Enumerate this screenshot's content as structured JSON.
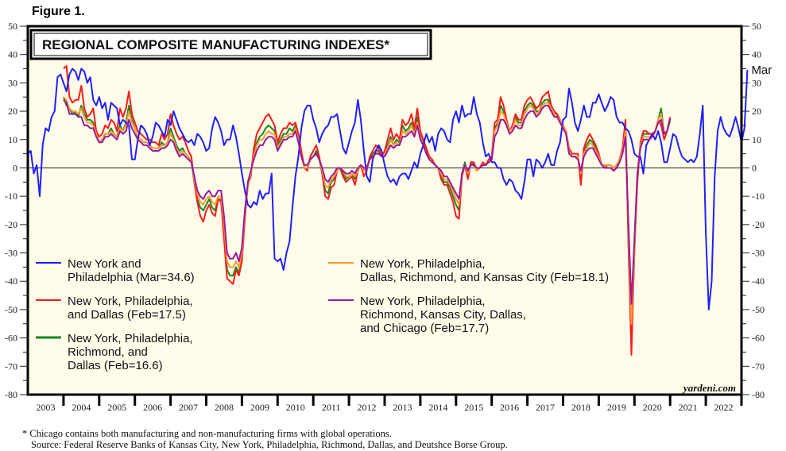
{
  "figure_label": "Figure 1.",
  "footnotes": {
    "note": "*  Chicago contains both manufacturing and non-manufacturing firms with global operations.",
    "source": "Source: Federal Reserve Banks of Kansas City, New York, Philadelphia, Richmond, Dallas, and Deutshce Borse Group."
  },
  "chart_data": {
    "type": "line",
    "title": "REGIONAL COMPOSITE MANUFACTURING INDEXES*",
    "brand": "yardeni.com",
    "xlabel": "",
    "ylabel": "",
    "ylim": [
      -80,
      50
    ],
    "yticks": [
      50,
      40,
      30,
      20,
      10,
      0,
      -10,
      -20,
      -30,
      -40,
      -50,
      -60,
      -70,
      -80
    ],
    "xlim": [
      2003.0,
      2023.0
    ],
    "xtick_labels": [
      "2003",
      "2004",
      "2005",
      "2006",
      "2007",
      "2008",
      "2009",
      "2010",
      "2011",
      "2012",
      "2013",
      "2014",
      "2015",
      "2016",
      "2017",
      "2018",
      "2019",
      "2020",
      "2021",
      "2022"
    ],
    "grid": false,
    "zero_line": true,
    "end_annotation": {
      "text": "Mar",
      "series": "ny_phil",
      "color": "#2a2ae6"
    },
    "legend_placement": "lower-left / lower-center inside plot",
    "series": [
      {
        "key": "ny_phil",
        "name_lines": [
          "New York and",
          "Philadelphia (Mar=34.6)"
        ],
        "color": "#1f1fff",
        "start": 2003.0,
        "step": 0.08333,
        "values": [
          5,
          6,
          -2,
          1,
          -10,
          8,
          14,
          13,
          18,
          20,
          32,
          33,
          30,
          27,
          33,
          35,
          34,
          31,
          35,
          34,
          30,
          32,
          24,
          22,
          25,
          21,
          23,
          17,
          23,
          22,
          21,
          15,
          17,
          16,
          15,
          3,
          3,
          10,
          15,
          14,
          12,
          8,
          11,
          16,
          15,
          13,
          11,
          17,
          15,
          20,
          17,
          14,
          12,
          10,
          9,
          10,
          8,
          12,
          11,
          9,
          6,
          7,
          14,
          18,
          16,
          13,
          8,
          10,
          10,
          15,
          11,
          5,
          -2,
          -8,
          -13,
          -14,
          -12,
          -13,
          -8,
          -11,
          -9,
          -9,
          -2,
          -32,
          -33,
          -32,
          -36,
          -30,
          -26,
          -14,
          -3,
          4,
          14,
          20,
          22,
          22,
          17,
          14,
          9,
          12,
          14,
          15,
          18,
          18,
          19,
          13,
          7,
          5,
          9,
          13,
          16,
          24,
          17,
          6,
          -3,
          -5,
          3,
          6,
          8,
          6,
          1,
          -3,
          -5,
          -4,
          -6,
          -3,
          -2,
          -2,
          -4,
          -1,
          2,
          0,
          5,
          8,
          12,
          9,
          11,
          6,
          12,
          14,
          13,
          10,
          9,
          17,
          20,
          16,
          22,
          18,
          19,
          19,
          25,
          19,
          16,
          9,
          4,
          5,
          2,
          2,
          0,
          0,
          -4,
          -6,
          -4,
          -5,
          -8,
          -9,
          -11,
          -5,
          3,
          3,
          -3,
          3,
          2,
          0,
          2,
          5,
          1,
          1,
          6,
          9,
          17,
          18,
          28,
          23,
          16,
          13,
          17,
          22,
          18,
          18,
          23,
          23,
          26,
          23,
          20,
          22,
          25,
          24,
          18,
          16,
          16,
          14,
          13,
          10,
          5,
          4,
          4,
          -2,
          8,
          10,
          12,
          10,
          13,
          9,
          2,
          2,
          7,
          12,
          11,
          7,
          4,
          3,
          2,
          3,
          2,
          4,
          12,
          22,
          -23,
          -50,
          -40,
          -3,
          13,
          18,
          14,
          12,
          11,
          14,
          18,
          14,
          9,
          14,
          34.6
        ]
      },
      {
        "key": "ny_phil_dal",
        "name_lines": [
          "New York, Philadelphia,",
          " and Dallas (Feb=17.5)"
        ],
        "color": "#ff1a1a",
        "start": 2004.0,
        "step": 0.08333,
        "values": [
          35,
          36,
          25,
          23,
          24,
          24,
          29,
          21,
          18,
          19,
          21,
          13,
          11,
          12,
          15,
          14,
          17,
          16,
          13,
          21,
          18,
          21,
          27,
          19,
          16,
          13,
          12,
          11,
          10,
          10,
          9,
          9,
          8,
          12,
          10,
          12,
          19,
          15,
          12,
          10,
          11,
          9,
          6,
          4,
          -5,
          -12,
          -17,
          -19,
          -15,
          -13,
          -16,
          -17,
          -11,
          -12,
          -25,
          -39,
          -40,
          -41,
          -36,
          -38,
          -33,
          -18,
          -6,
          -3,
          7,
          12,
          14,
          16,
          18,
          19,
          17,
          15,
          9,
          12,
          14,
          14,
          16,
          15,
          16,
          12,
          6,
          0,
          -1,
          4,
          6,
          8,
          4,
          -2,
          -10,
          -11,
          -7,
          -6,
          -1,
          0,
          -3,
          -5,
          -4,
          -3,
          -6,
          -1,
          1,
          -3,
          -1,
          4,
          6,
          8,
          7,
          4,
          6,
          10,
          14,
          10,
          12,
          10,
          17,
          15,
          16,
          19,
          14,
          21,
          13,
          10,
          7,
          4,
          3,
          1,
          0,
          -4,
          -6,
          -6,
          -9,
          -12,
          -17,
          -18,
          -3,
          1,
          -4,
          2,
          2,
          -1,
          0,
          2,
          1,
          3,
          4,
          16,
          17,
          25,
          22,
          17,
          13,
          15,
          19,
          17,
          17,
          22,
          24,
          25,
          23,
          21,
          22,
          25,
          26,
          27,
          22,
          20,
          19,
          17,
          15,
          13,
          7,
          5,
          5,
          5,
          -6,
          7,
          10,
          12,
          10,
          8,
          5,
          1,
          1,
          0,
          0,
          -1,
          0,
          3,
          7,
          17,
          -28,
          -66,
          -28,
          -5,
          9,
          13,
          13,
          12,
          12,
          13,
          17,
          15,
          10,
          13,
          17.5
        ]
      },
      {
        "key": "ny_phil_rich_dal",
        "name_lines": [
          "New York, Philadelphia,",
          "Richmond, and",
          "Dallas (Feb=16.6)"
        ],
        "color": "#138a1f",
        "start": 2004.0,
        "step": 0.08333,
        "values": [
          25,
          22,
          21,
          19,
          20,
          18,
          22,
          19,
          17,
          17,
          16,
          12,
          9,
          10,
          12,
          12,
          14,
          12,
          11,
          15,
          13,
          16,
          22,
          17,
          14,
          11,
          10,
          9,
          9,
          8,
          7,
          7,
          7,
          9,
          8,
          9,
          14,
          11,
          8,
          6,
          7,
          5,
          4,
          2,
          -5,
          -11,
          -14,
          -15,
          -13,
          -11,
          -14,
          -15,
          -11,
          -11,
          -22,
          -36,
          -38,
          -38,
          -35,
          -37,
          -32,
          -17,
          -6,
          -2,
          5,
          9,
          11,
          12,
          14,
          15,
          14,
          13,
          8,
          10,
          12,
          12,
          14,
          13,
          15,
          11,
          5,
          0,
          0,
          3,
          4,
          6,
          3,
          -2,
          -8,
          -9,
          -5,
          -4,
          -1,
          0,
          -2,
          -4,
          -3,
          -2,
          -4,
          -1,
          1,
          -1,
          0,
          3,
          5,
          6,
          6,
          4,
          5,
          8,
          11,
          8,
          10,
          9,
          15,
          13,
          14,
          16,
          13,
          18,
          12,
          9,
          6,
          3,
          2,
          1,
          0,
          -3,
          -5,
          -5,
          -7,
          -10,
          -13,
          -15,
          -2,
          2,
          -3,
          2,
          1,
          -1,
          0,
          1,
          1,
          2,
          3,
          14,
          16,
          22,
          20,
          16,
          13,
          14,
          18,
          16,
          16,
          20,
          22,
          23,
          22,
          20,
          20,
          23,
          24,
          24,
          21,
          19,
          19,
          17,
          15,
          13,
          6,
          4,
          4,
          4,
          -3,
          6,
          8,
          10,
          9,
          7,
          4,
          1,
          1,
          1,
          1,
          0,
          1,
          3,
          6,
          14,
          -25,
          -62,
          -30,
          -3,
          8,
          12,
          12,
          12,
          12,
          13,
          17,
          21,
          12,
          13,
          16.6
        ]
      },
      {
        "key": "ny_phil_dal_rich_kc",
        "name_lines": [
          "New York, Philadelphia,",
          "Dallas, Richmond, and Kansas City (Feb=18.1)"
        ],
        "color": "#ff9a2e",
        "start": 2004.0,
        "step": 0.08333,
        "values": [
          25,
          24,
          21,
          20,
          20,
          19,
          21,
          18,
          16,
          16,
          15,
          12,
          9,
          10,
          12,
          12,
          13,
          12,
          11,
          14,
          13,
          15,
          20,
          16,
          14,
          11,
          10,
          9,
          9,
          8,
          7,
          7,
          7,
          8,
          8,
          9,
          12,
          10,
          7,
          5,
          6,
          5,
          4,
          2,
          -4,
          -9,
          -12,
          -13,
          -11,
          -10,
          -12,
          -13,
          -10,
          -10,
          -20,
          -33,
          -35,
          -35,
          -33,
          -35,
          -30,
          -16,
          -6,
          -2,
          4,
          8,
          10,
          10,
          12,
          13,
          12,
          12,
          7,
          9,
          11,
          11,
          12,
          12,
          14,
          10,
          4,
          0,
          0,
          3,
          4,
          5,
          3,
          -1,
          -6,
          -7,
          -4,
          -3,
          -1,
          0,
          -1,
          -3,
          -3,
          -2,
          -3,
          -1,
          1,
          -1,
          0,
          3,
          4,
          6,
          5,
          4,
          5,
          7,
          10,
          8,
          9,
          8,
          13,
          12,
          13,
          15,
          12,
          16,
          11,
          8,
          5,
          3,
          2,
          1,
          0,
          -2,
          -4,
          -4,
          -6,
          -8,
          -11,
          -13,
          -2,
          1,
          -2,
          1,
          1,
          -1,
          0,
          1,
          1,
          2,
          3,
          13,
          15,
          20,
          19,
          16,
          13,
          14,
          17,
          15,
          15,
          19,
          21,
          22,
          21,
          19,
          20,
          22,
          23,
          23,
          21,
          19,
          18,
          17,
          15,
          13,
          6,
          4,
          4,
          4,
          -2,
          5,
          7,
          9,
          8,
          6,
          4,
          1,
          1,
          1,
          1,
          0,
          1,
          3,
          6,
          13,
          -22,
          -55,
          -28,
          -2,
          8,
          11,
          11,
          11,
          11,
          13,
          17,
          19,
          12,
          13,
          18.1
        ]
      },
      {
        "key": "ny_phil_rich_kc_dal_chi",
        "name_lines": [
          "New York, Philadelphia,",
          "Richmond, Kansas City, Dallas,",
          "and Chicago (Feb=17.7)"
        ],
        "color": "#991a9c",
        "start": 2004.0,
        "step": 0.08333,
        "values": [
          24,
          23,
          19,
          19,
          19,
          18,
          18,
          15,
          15,
          14,
          14,
          11,
          9,
          9,
          11,
          11,
          12,
          11,
          10,
          13,
          12,
          13,
          17,
          14,
          12,
          10,
          9,
          8,
          8,
          7,
          6,
          6,
          6,
          7,
          7,
          8,
          10,
          9,
          6,
          4,
          5,
          4,
          3,
          2,
          -3,
          -8,
          -10,
          -11,
          -9,
          -8,
          -10,
          -10,
          -8,
          -8,
          -17,
          -30,
          -32,
          -32,
          -30,
          -33,
          -28,
          -15,
          -5,
          -1,
          3,
          6,
          8,
          8,
          10,
          11,
          11,
          10,
          6,
          8,
          10,
          10,
          11,
          11,
          13,
          9,
          4,
          1,
          1,
          3,
          4,
          5,
          3,
          0,
          -4,
          -5,
          -3,
          -2,
          0,
          0,
          -1,
          -2,
          -2,
          -1,
          -2,
          0,
          1,
          0,
          0,
          3,
          4,
          5,
          5,
          4,
          4,
          6,
          8,
          7,
          8,
          8,
          11,
          11,
          12,
          13,
          11,
          15,
          10,
          8,
          5,
          3,
          2,
          1,
          0,
          -1,
          -3,
          -3,
          -5,
          -7,
          -9,
          -11,
          -2,
          1,
          -1,
          1,
          1,
          0,
          0,
          1,
          1,
          2,
          3,
          11,
          13,
          17,
          17,
          15,
          12,
          13,
          15,
          14,
          14,
          17,
          19,
          20,
          20,
          18,
          19,
          21,
          22,
          22,
          20,
          18,
          18,
          16,
          14,
          12,
          5,
          4,
          4,
          3,
          -1,
          4,
          6,
          7,
          7,
          5,
          3,
          1,
          0,
          0,
          0,
          -1,
          0,
          2,
          5,
          11,
          -20,
          -48,
          -25,
          -2,
          7,
          10,
          10,
          10,
          11,
          13,
          16,
          17,
          12,
          13,
          17.7
        ]
      }
    ]
  }
}
